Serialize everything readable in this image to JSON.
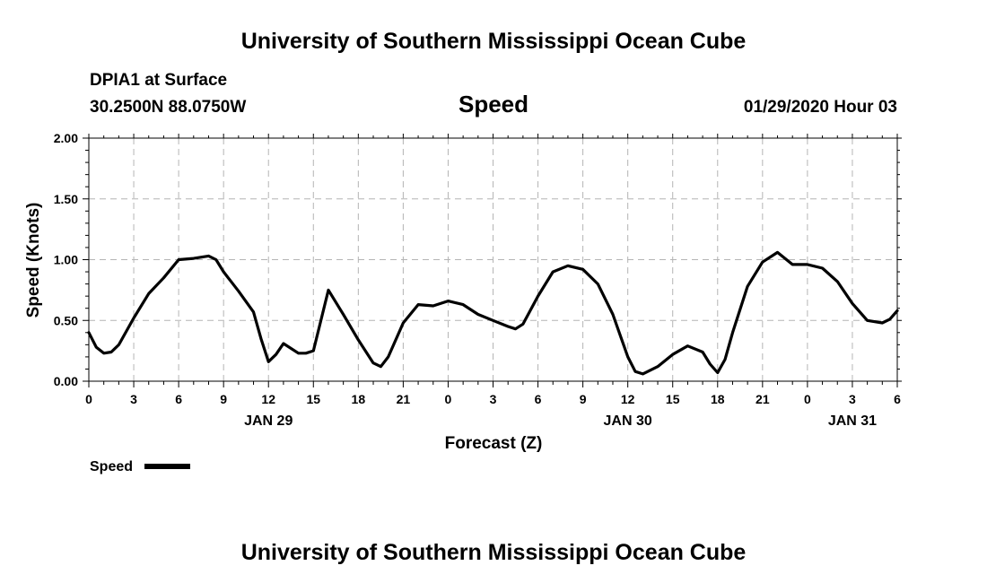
{
  "page": {
    "title_top": "University of Southern Mississippi Ocean Cube",
    "title_bottom": "University of Southern Mississippi Ocean Cube",
    "station": "DPIA1 at Surface",
    "coords": "30.2500N 88.0750W",
    "variable": "Speed",
    "run_time": "01/29/2020 Hour 03"
  },
  "colors": {
    "line": "#000000",
    "grid": "#b4b4b4",
    "background": "#ffffff"
  },
  "chart_data": {
    "type": "line",
    "title": "Speed",
    "xlabel": "Forecast (Z)",
    "ylabel": "Speed (Knots)",
    "xlim": [
      0,
      54
    ],
    "ylim": [
      0,
      2
    ],
    "grid": true,
    "x_unit": "hours from 00Z Jan 29",
    "x_tick_values": [
      0,
      3,
      6,
      9,
      12,
      15,
      18,
      21,
      24,
      27,
      30,
      33,
      36,
      39,
      42,
      45,
      48,
      51,
      54
    ],
    "x_tick_labels": [
      "0",
      "3",
      "6",
      "9",
      "12",
      "15",
      "18",
      "21",
      "0",
      "3",
      "6",
      "9",
      "12",
      "15",
      "18",
      "21",
      "0",
      "3",
      "6"
    ],
    "date_labels": [
      {
        "hour": 12,
        "label": "JAN 29"
      },
      {
        "hour": 36,
        "label": "JAN 30"
      },
      {
        "hour": 51,
        "label": "JAN 31"
      }
    ],
    "y_tick_values": [
      0,
      0.5,
      1,
      1.5,
      2
    ],
    "y_tick_labels": [
      "0.00",
      "0.50",
      "1.00",
      "1.50",
      "2.00"
    ],
    "legend": {
      "label": "Speed",
      "position": "bottom-left"
    },
    "series": [
      {
        "name": "Speed",
        "x": [
          0,
          0.5,
          1,
          1.5,
          2,
          3,
          4,
          5,
          6,
          7,
          8,
          8.5,
          9,
          10,
          11,
          11.5,
          12,
          12.5,
          13,
          14,
          14.5,
          15,
          16,
          17,
          18,
          19,
          19.5,
          20,
          21,
          22,
          23,
          24,
          25,
          26,
          27,
          28,
          28.5,
          29,
          30,
          31,
          32,
          33,
          34,
          35,
          36,
          36.5,
          37,
          38,
          39,
          40,
          41,
          41.5,
          42,
          42.5,
          43,
          44,
          45,
          46,
          47,
          48,
          49,
          50,
          51,
          52,
          53,
          53.5,
          54
        ],
        "y": [
          0.4,
          0.28,
          0.23,
          0.24,
          0.3,
          0.52,
          0.72,
          0.85,
          1.0,
          1.01,
          1.03,
          1.0,
          0.9,
          0.74,
          0.57,
          0.35,
          0.16,
          0.22,
          0.31,
          0.23,
          0.23,
          0.25,
          0.75,
          0.55,
          0.34,
          0.15,
          0.12,
          0.2,
          0.48,
          0.63,
          0.62,
          0.66,
          0.63,
          0.55,
          0.5,
          0.45,
          0.43,
          0.47,
          0.7,
          0.9,
          0.95,
          0.92,
          0.8,
          0.55,
          0.2,
          0.08,
          0.06,
          0.12,
          0.22,
          0.29,
          0.24,
          0.14,
          0.07,
          0.18,
          0.4,
          0.78,
          0.98,
          1.06,
          0.96,
          0.96,
          0.93,
          0.82,
          0.64,
          0.5,
          0.48,
          0.51,
          0.58
        ]
      }
    ]
  }
}
